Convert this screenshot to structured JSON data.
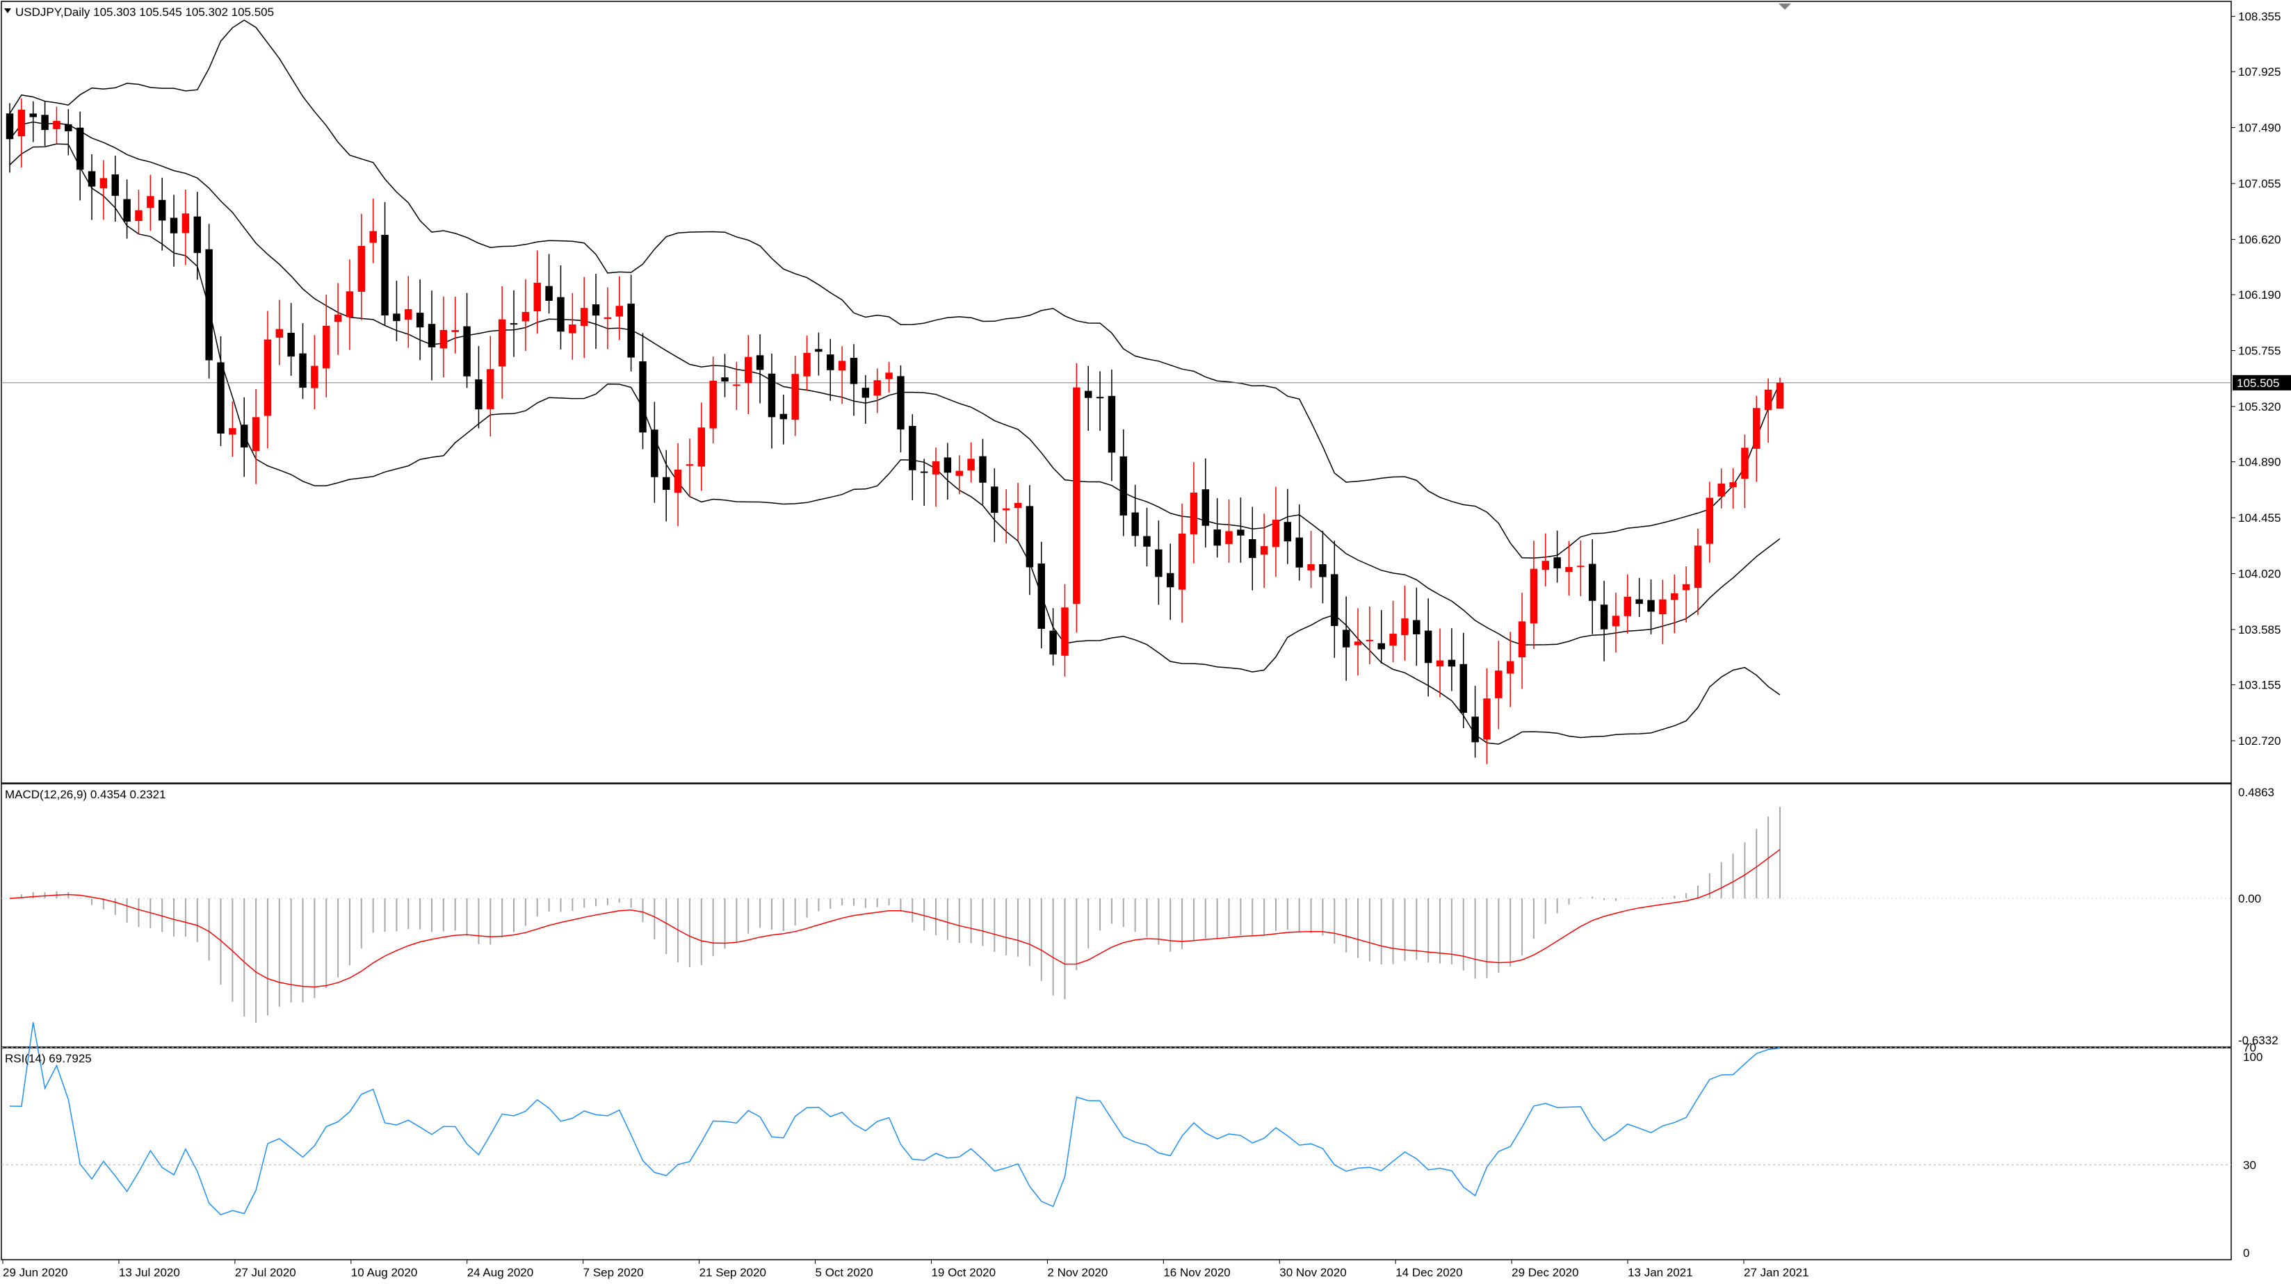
{
  "window": {
    "main_title": "USDJPY,Daily  105.303 105.545 105.302 105.505",
    "macd_title": "MACD(12,26,9) 0.4354 0.2321",
    "rsi_title": "RSI(14) 69.7925"
  },
  "colors": {
    "bull": "#ff0000",
    "bear": "#000000",
    "bands": "#000000",
    "macd_hist": "#a9a9a9",
    "macd_signal": "#ff0000",
    "rsi_line": "#1e90ff",
    "price_line": "#808080",
    "price_tag_bg": "#000000",
    "price_tag_text": "#ffffff"
  },
  "chart_data": [
    {
      "type": "candlestick",
      "panel": "price",
      "symbol": "USDJPY",
      "timeframe": "Daily",
      "ohlc_readout": {
        "open": 105.303,
        "high": 105.545,
        "low": 105.302,
        "close": 105.505
      },
      "current_price": 105.505,
      "current_price_label": "105.505",
      "y_ticks": [
        "108.355",
        "107.925",
        "107.490",
        "107.055",
        "106.620",
        "106.190",
        "105.755",
        "105.320",
        "104.890",
        "104.455",
        "104.020",
        "103.585",
        "103.155",
        "102.720"
      ],
      "x_ticks": [
        "29 Jun 2020",
        "13 Jul 2020",
        "27 Jul 2020",
        "10 Aug 2020",
        "24 Aug 2020",
        "7 Sep 2020",
        "21 Sep 2020",
        "5 Oct 2020",
        "19 Oct 2020",
        "2 Nov 2020",
        "16 Nov 2020",
        "30 Nov 2020",
        "14 Dec 2020",
        "29 Dec 2020",
        "13 Jan 2021",
        "27 Jan 2021"
      ],
      "ylim": [
        102.6,
        108.5
      ],
      "indicators": [
        "Bollinger Bands (upper, middle, lower)"
      ]
    },
    {
      "type": "bar+line",
      "panel": "macd",
      "name": "MACD(12,26,9)",
      "main": 0.4354,
      "signal": 0.2321,
      "y_ticks": [
        "0.4863",
        "0.00",
        "-0.6332"
      ],
      "ylim": [
        -0.6332,
        0.4863
      ]
    },
    {
      "type": "line",
      "panel": "rsi",
      "name": "RSI(14)",
      "value": 69.7925,
      "y_ticks": [
        "100",
        "70",
        "30",
        "0"
      ],
      "levels": [
        70,
        30
      ],
      "ylim": [
        0,
        100
      ]
    }
  ]
}
